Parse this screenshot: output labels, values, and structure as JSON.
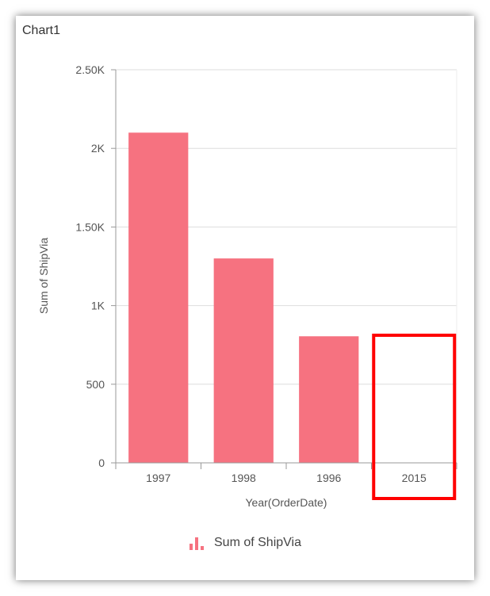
{
  "chart_title": "Chart1",
  "chart_data": {
    "type": "bar",
    "title": "Chart1",
    "categories": [
      "1997",
      "1998",
      "1996",
      "2015"
    ],
    "series": [
      {
        "name": "Sum of ShipVia",
        "values": [
          2100,
          1300,
          805,
          0
        ]
      }
    ],
    "xlabel": "Year(OrderDate)",
    "ylabel": "Sum of ShipVia",
    "ylim": [
      0,
      2500
    ],
    "yticks": [
      0,
      500,
      1000,
      1500,
      2000,
      2500
    ],
    "ytick_labels": [
      "0",
      "500",
      "1K",
      "1.50K",
      "2K",
      "2.50K"
    ],
    "grid": true,
    "legend": "bottom",
    "bar_color": "#f67280",
    "highlight_category": "2015",
    "highlight_color": "#ff0000"
  }
}
